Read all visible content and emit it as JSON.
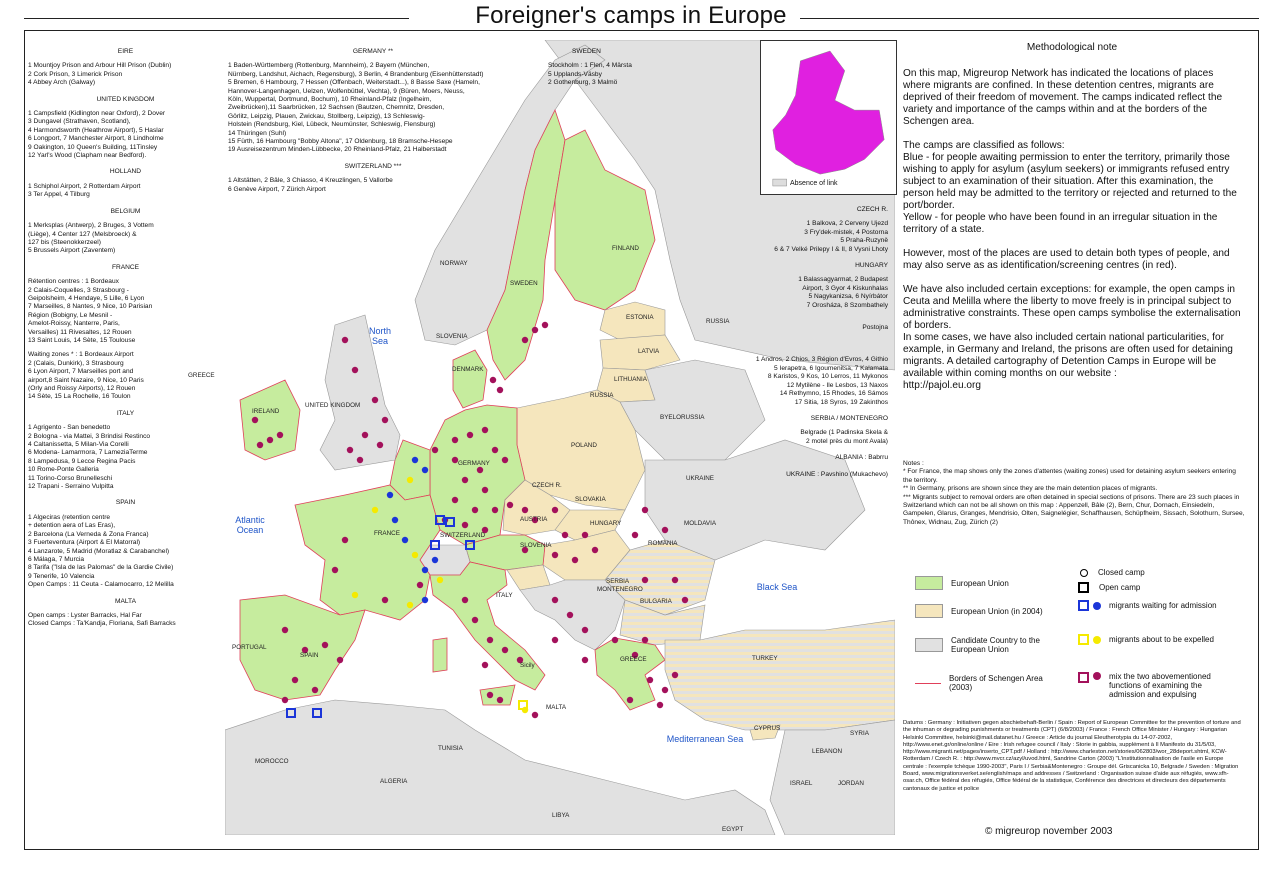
{
  "title": "Foreigner's camps in Europe",
  "left_column": {
    "eire": {
      "header": "EIRE",
      "text": "1 Mountjoy Prison and Arbour Hill Prison (Dublin)\n2 Cork Prison, 3 Limerick Prison\n4 Abbey Arch (Galway)"
    },
    "uk": {
      "header": "UNITED KINGDOM",
      "text": "1 Campsfield (Kidlington near Oxford), 2 Dover\n3 Dungavel (Strathaven, Scotland),\n4 Harmondsworth (Heathrow Airport), 5 Haslar\n6 Longport, 7 Manchester Airport, 8 Lindholme\n9 Oakington, 10 Queen's Building, 11Tinsley\n12 Yarl's Wood (Clapham near Bedford)."
    },
    "holland": {
      "header": "HOLLAND",
      "text": "1 Schiphol Airport, 2 Rotterdam Airport\n3 Ter Appel, 4 Tilburg"
    },
    "belgium": {
      "header": "BELGIUM",
      "text": "1 Merksplas (Antwerp), 2 Bruges, 3 Vottem\n(Liège), 4 Center 127 (Melsbroeck) &\n127 bis (Steenokkerzeel)\n5 Brussels Airport (Zaventem)"
    },
    "france": {
      "header": "FRANCE",
      "text": "Rétention centres : 1 Bordeaux\n2 Calais-Coquelles, 3 Strasbourg -\nGeipolsheim, 4 Hendaye, 5 Lille, 6 Lyon\n7 Marseilles, 8 Nantes, 9 Nice, 10 Parisian\nRégion (Bobigny, Le Mesnil -\nAmelot-Roissy, Nanterre, Paris,\nVersailles) 11 Rivesaltes, 12 Rouen\n13 Saint Louis, 14 Sète, 15 Toulouse",
      "text2": "Waiting zones * : 1 Bordeaux Airport\n2 (Calais, Dunkirk), 3 Strasbourg\n6 Lyon Airport, 7 Marseilles port and\nairport,8 Saint Nazaire, 9 Nice, 10 Paris\n(Orly and Roissy Airports), 12 Rouen\n14 Sète, 15 La Rochelle, 16 Toulon"
    },
    "italy": {
      "header": "ITALY",
      "text": "1 Agrigento - San benedetto\n2 Bologna - via Mattei, 3 Brindisi Restinco\n4 Caltanissetta, 5 Milan-Via Corelli\n6 Modena- Lamarmora, 7 LameziaTerme\n8 Lampedusa, 9 Lecce Regina Pacis\n10 Rome-Ponte Galleria\n11 Torino-Corso Brunelleschi\n12 Trapani - Serraino Vulpitta"
    },
    "spain": {
      "header": "SPAIN",
      "text": "1 Algeciras (retention centre\n+ detention aera of Las Eras),\n2 Barcelona (La Verneda & Zona Franca)\n3 Fuerteventura (Airport & El Matorral)\n4 Lanzarote, 5 Madrid (Moratlaz & Carabanchel)\n6 Málaga, 7 Murcia\n8 Tarifa (\"Isla de las Palomas\" de la Gardie Civile)\n9 Tenerife, 10 Valencia\nOpen Camps : 11 Ceuta - Calamocarro, 12 Melilla"
    },
    "malta": {
      "header": "MALTA",
      "text": "Open camps : Lyster Barracks, Hal Far\nClosed Camps : Ta'Kandja, Floriana, Safi Barracks"
    }
  },
  "mid_column": {
    "germany": {
      "header": "GERMANY **",
      "text": "1 Baden-Württemberg (Rottenburg, Mannheim), 2 Bayern (München,\nNürnberg, Landshut, Aichach, Regensburg), 3 Berlin, 4 Brandenburg (Eisenhüttenstadt)\n5 Bremen, 6 Hambourg, 7 Hessen (Offenbach, Weiterstadt...), 8 Basse Saxe (Hameln,\nHannover-Langenhagen, Uelzen, Wolfenbüttel, Vechta), 9 (Büren, Moers, Neuss,\nKöln, Wuppertal, Dortmund, Bochum), 10 Rheinland-Pfalz (Ingelheim,\nZweibrücken),11 Saarbrücken, 12 Sachsen (Bautzen, Chemnitz, Dresden,\nGörlitz, Leipzig, Plauen, Zwickau, Stollberg, Leipzig), 13 Schleswig-\nHolstein (Rendsburg, Kiel, Lübeck, Neumünster, Schleswig, Flensburg)\n14 Thüringen (Suhl)\n15 Fürth, 16 Hambourg \"Bobby Altona\", 17 Oldenburg, 18 Bramsche-Hesepe\n19 Ausreisezentrum Minden-Lübbecke, 20 Rheinland-Pfalz, 21 Halberstadt"
    },
    "switzerland": {
      "header": "SWITZERLAND ***",
      "text": "1 Altstätten, 2 Bâle, 3 Chiasso, 4 Kreuzlingen, 5 Vallorbe\n6 Genève Airport, 7 Zürich Airport"
    },
    "sweden": {
      "header": "SWEDEN",
      "text": "Stockholm : 1 Flen, 4 Märsta\n5 Upplands-Väsby\n2 Gothenburg, 3 Malmö"
    }
  },
  "right_column": {
    "czech": {
      "header": "CZECH R.",
      "text": "1 Balkova, 2 Cerveny Ujezd\n3 Fry'dek-mistek, 4 Postorna\n5 Praha-Ruzyně\n6 & 7 Velké Prilepy I & II, 8 Vysni Lhoty"
    },
    "hungary": {
      "header": "HUNGARY",
      "text": "1 Balassagyarmat, 2 Budapest\nAirport, 3 Gyor 4 Kiskunhalas\n5 Nagykanizsa, 6 Nyírbátor\n7 Orosháza, 8 Szombathely"
    },
    "postojna": "Postojna",
    "greece": {
      "text": "1 Andros, 2 Chios, 3 Région d'Evros, 4 Githio\n5 Ierapetra, 6 Igoumenitsa, 7 Kalamata\n8 Karistos, 9 Kos, 10 Lerros, 11 Mykonos\n12 Mytilène - Ile Lesbos, 13 Naxos\n14 Rethymno, 15 Rhodes, 16 Sámos\n17 Sitia, 18 Syros, 19 Zakinthos"
    },
    "serbia": {
      "header": "SERBIA / MONTENEGRO",
      "text": "Belgrade (1 Padinska Skela &\n2 motel près du mont Avala)"
    },
    "albania": "ALBANIA : Babrru",
    "ukraine": "UKRAINE : Pavshino (Mukachevo)"
  },
  "country_labels": [
    {
      "name": "NORWAY",
      "id": "norway"
    },
    {
      "name": "SWEDEN",
      "id": "sweden"
    },
    {
      "name": "FINLAND",
      "id": "finland"
    },
    {
      "name": "ESTONIA",
      "id": "estonia"
    },
    {
      "name": "LATVIA",
      "id": "latvia"
    },
    {
      "name": "LITHUANIA",
      "id": "lithuania"
    },
    {
      "name": "RUSSIA",
      "id": "russia"
    },
    {
      "name": "BYELORUSSIA",
      "id": "byelorussia"
    },
    {
      "name": "POLAND",
      "id": "poland"
    },
    {
      "name": "UKRAINE",
      "id": "ukraine"
    },
    {
      "name": "SLOVAKIA",
      "id": "slovakia"
    },
    {
      "name": "HUNGARY",
      "id": "hungary"
    },
    {
      "name": "MOLDAVIA",
      "id": "moldavia"
    },
    {
      "name": "ROMANIA",
      "id": "romania"
    },
    {
      "name": "BULGARIA",
      "id": "bulgaria"
    },
    {
      "name": "SERBIA",
      "id": "serbia"
    },
    {
      "name": "MONTENEGRO",
      "id": "montenegro"
    },
    {
      "name": "TURKEY",
      "id": "turkey"
    },
    {
      "name": "GREECE",
      "id": "greece-map"
    },
    {
      "name": "GREECE",
      "id": "greece-left"
    },
    {
      "name": "CYPRUS",
      "id": "cyprus"
    },
    {
      "name": "SYRIA",
      "id": "syria"
    },
    {
      "name": "LEBANON",
      "id": "lebanon"
    },
    {
      "name": "ISRAEL",
      "id": "israel"
    },
    {
      "name": "JORDAN",
      "id": "jordan"
    },
    {
      "name": "EGYPT",
      "id": "egypt"
    },
    {
      "name": "LIBYA",
      "id": "libya"
    },
    {
      "name": "TUNISIA",
      "id": "tunisia"
    },
    {
      "name": "ALGERIA",
      "id": "algeria"
    },
    {
      "name": "MOROCCO",
      "id": "morocco"
    },
    {
      "name": "PORTUGAL",
      "id": "portugal"
    },
    {
      "name": "SPAIN",
      "id": "spain"
    },
    {
      "name": "FRANCE",
      "id": "france"
    },
    {
      "name": "IRELAND",
      "id": "ireland"
    },
    {
      "name": "UNITED KINGDOM",
      "id": "uk"
    },
    {
      "name": "GERMANY",
      "id": "germany"
    },
    {
      "name": "DENMARK",
      "id": "denmark"
    },
    {
      "name": "SLOVENIA",
      "id": "slovenia-top"
    },
    {
      "name": "CZECH R.",
      "id": "czech"
    },
    {
      "name": "AUSTRIA",
      "id": "austria"
    },
    {
      "name": "SWITZERLAND",
      "id": "switzerland"
    },
    {
      "name": "ITALY",
      "id": "italy"
    },
    {
      "name": "SLOVENIA",
      "id": "slovenia"
    },
    {
      "name": "MALTA",
      "id": "malta"
    },
    {
      "name": "Sicily",
      "id": "sicily"
    },
    {
      "name": "RUSSIA",
      "id": "kaliningrad"
    }
  ],
  "seas": {
    "north": "North Sea",
    "atlantic": "Atlantic Ocean",
    "black": "Black Sea",
    "med": "Mediterranean Sea"
  },
  "inset_legend": "Absence of link",
  "method_note": {
    "title": "Methodological note",
    "p1": "On this map, Migreurop Network has indicated the locations of places where migrants are confined. In these detention centres, migrants are deprived of their freedom of movement. The camps indicated reflect the variety and importance of the camps within and at the borders of the Schengen area.",
    "p2": "The camps are classified as follows:\nBlue - for people awaiting permission to enter the territory, primarily those wishing to apply for asylum (asylum seekers) or immigrants refused entry subject to an examination of their situation. After this examination, the person held may be admitted to the territory or rejected and returned to the port/border.\nYellow - for people who have been found in an irregular situation in the territory of a state.",
    "p3": "However, most of the places are used to detain both types of people, and may also serve as as identification/screening centres (in red).",
    "p4": "We have also included certain exceptions: for example, the open camps in Ceuta and Melilla where the liberty to move freely is in principal subject to administrative constraints. These open camps symbolise the externalisation of borders.\nIn some cases, we have also included certain national particularities, for example, in Germany and Ireland, the prisons are often used for detaining migrants. A detailed cartography of Detention Camps in Europe will be available within coming months on our website :\nhttp://pajol.eu.org"
  },
  "notes": {
    "title": "Notes :",
    "n1": "* For France, the map shows only the zones d'attentes (waiting zones) used for detaining asylum seekers entering the territory.",
    "n2": "** In Germany, prisons are shown since they are the main detention places of migrants.",
    "n3": "*** Migrants subject to removal orders are often detained in special sections of prisons. There are 23 such places in Switzerland which can not be all shown on this map : Appenzell, Bâle (2), Bern, Chur, Dornach, Einsiedeln, Gampelen, Glarus, Granges, Mendrisio, Olten, Saignelégier, Schaffhausen, Schüpfheim, Sissach, Solothurn, Sursee, Thônex, Widnau, Zug, Zürich (2)"
  },
  "legend": {
    "eu": "European Union",
    "eu2004": "European Union (in 2004)",
    "candidate": "Candidate Country to the European Union",
    "schengen": "Borders of Schengen Area (2003)",
    "closed": "Closed camp",
    "open": "Open camp",
    "waiting": "migrants waiting for admission",
    "expelled": "migrants about to be expelled",
    "mix": "mix the two abovementioned functions of examining the admission and expulsing"
  },
  "colors": {
    "eu": "#c6ec9e",
    "eu2004": "#f5e6bd",
    "candidate": "#e1e1e1",
    "sea": "#ffffff",
    "blue": "#1b35d8",
    "yellow": "#f5ea00",
    "red": "#a3115b",
    "schengen": "#e0405a",
    "inset_eu": "#e020e0"
  },
  "sources": "Datums : Germany : Initiativen gegen abschiebehaft-Berlin / Spain : Report of European Committee for the prevention of torture and the inhuman or degrading punishments or treatments (CPT) (6/8/2003) / France : French Office Minister / Hungary : Hungarian Helsinki Committee, helsinki@mail.datanet.hu / Greece : Article du journal Eleutherotypia du 14-07-2002, http://www.enet.gr/online/online / Eire : Irish refugee council / Italy : Storie in gabbia, supplément à Il Manifesto du 31/5/03, http://www.migranti.net/pages/inserto_CPT.pdf / Holland : http://www.charleston.net/stories/062803/wor_28deport.shtml, KCW-Rotterdam / Czech R. : http://www.mvcr.cz/azyl/uvod.html, Sandrine Carton (2003) \"L'institutionnalisation de l'asile en Europe centrale : l'exemple tchèque 1990-2003\", Paris I / Serbia&Montenegro : Groupe dél. Griscanicka 10, Belgrade / Sweden : Migration Board, www.migrationsverket.se/english/maps and addresses / Switzerland : Organisation suisse d'aide aux réfugiés, www.sfh-osar.ch, Office fédéral des réfugiés, Office fédéral de la statistique, Conférence des directrices et directeurs des départements cantonaux de justice et police",
  "copyright": "© migreurop november 2003"
}
